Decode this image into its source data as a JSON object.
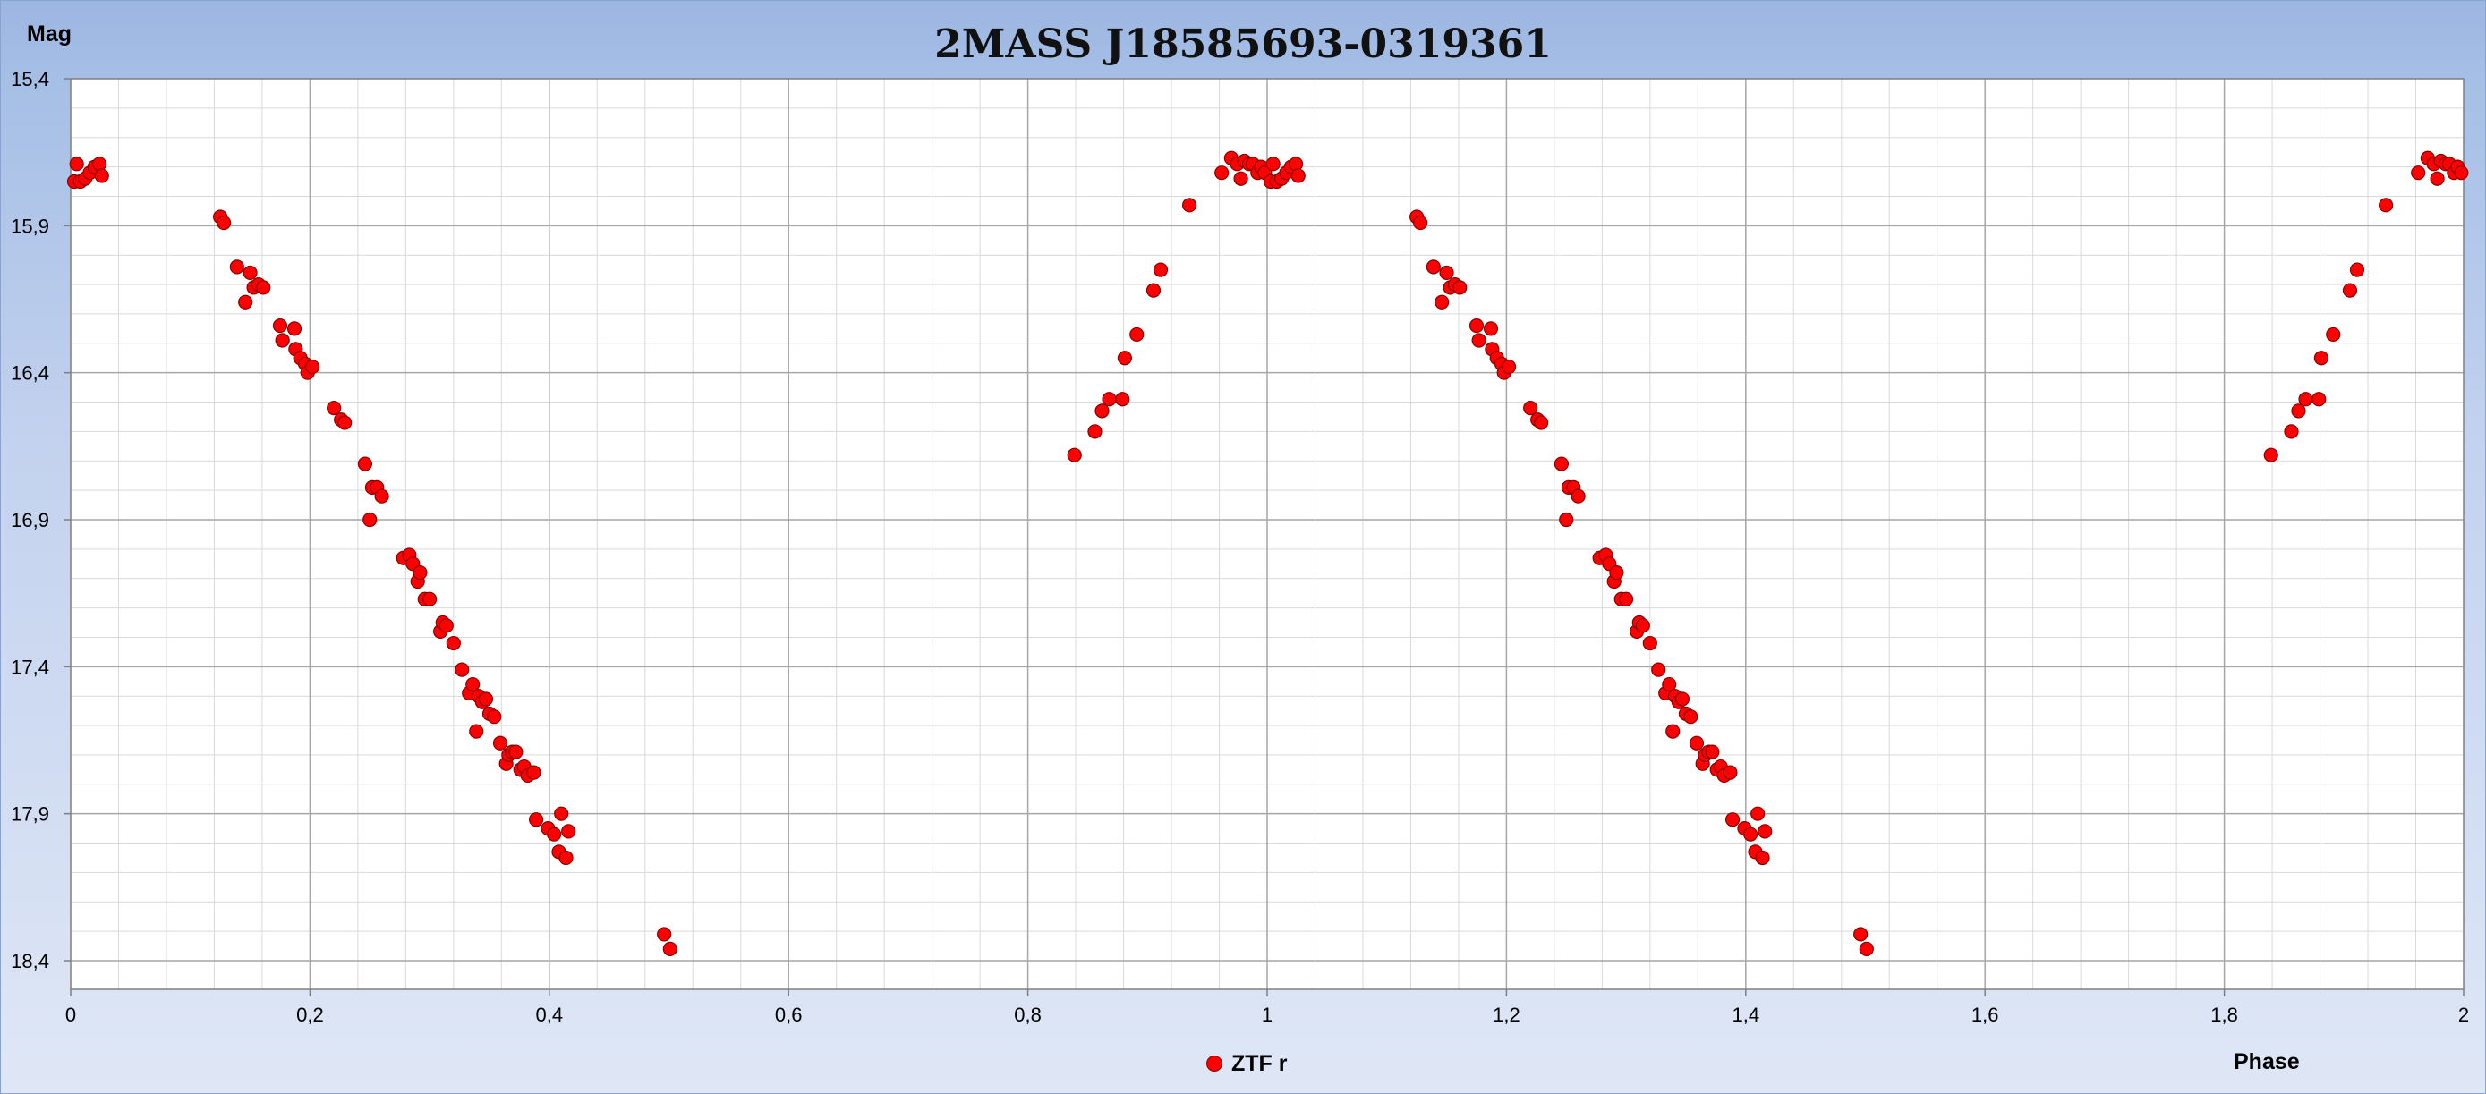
{
  "chart_data": {
    "type": "scatter",
    "title": "2MASS J18585693-0319361",
    "xlabel": "Phase",
    "ylabel": "Mag",
    "xlim": [
      0,
      2
    ],
    "ylim": [
      15.4,
      18.5
    ],
    "y_inverted": true,
    "x_ticks": [
      "0",
      "0,2",
      "0,4",
      "0,6",
      "0,8",
      "1",
      "1,2",
      "1,4",
      "1,6",
      "1,8",
      "2"
    ],
    "y_ticks": [
      "15,4",
      "15,9",
      "16,4",
      "16,9",
      "17,4",
      "17,9",
      "18,4"
    ],
    "grid": true,
    "legend_position": "bottom-center",
    "series": [
      {
        "name": "ZTF r",
        "color": "#ff0000",
        "edge_color": "#8b0000",
        "points": [
          [
            0.003,
            15.75
          ],
          [
            0.005,
            15.69
          ],
          [
            0.008,
            15.75
          ],
          [
            0.012,
            15.74
          ],
          [
            0.016,
            15.72
          ],
          [
            0.02,
            15.7
          ],
          [
            0.024,
            15.69
          ],
          [
            0.026,
            15.73
          ],
          [
            0.125,
            15.87
          ],
          [
            0.128,
            15.89
          ],
          [
            0.139,
            16.04
          ],
          [
            0.146,
            16.16
          ],
          [
            0.15,
            16.06
          ],
          [
            0.153,
            16.11
          ],
          [
            0.157,
            16.1
          ],
          [
            0.161,
            16.11
          ],
          [
            0.175,
            16.24
          ],
          [
            0.177,
            16.29
          ],
          [
            0.187,
            16.25
          ],
          [
            0.188,
            16.32
          ],
          [
            0.192,
            16.35
          ],
          [
            0.196,
            16.37
          ],
          [
            0.198,
            16.4
          ],
          [
            0.202,
            16.38
          ],
          [
            0.22,
            16.52
          ],
          [
            0.226,
            16.56
          ],
          [
            0.229,
            16.57
          ],
          [
            0.246,
            16.71
          ],
          [
            0.25,
            16.9
          ],
          [
            0.252,
            16.79
          ],
          [
            0.256,
            16.79
          ],
          [
            0.26,
            16.82
          ],
          [
            0.278,
            17.03
          ],
          [
            0.283,
            17.02
          ],
          [
            0.286,
            17.05
          ],
          [
            0.29,
            17.11
          ],
          [
            0.292,
            17.08
          ],
          [
            0.296,
            17.17
          ],
          [
            0.3,
            17.17
          ],
          [
            0.309,
            17.28
          ],
          [
            0.311,
            17.25
          ],
          [
            0.314,
            17.26
          ],
          [
            0.32,
            17.32
          ],
          [
            0.327,
            17.41
          ],
          [
            0.333,
            17.49
          ],
          [
            0.336,
            17.46
          ],
          [
            0.339,
            17.62
          ],
          [
            0.341,
            17.5
          ],
          [
            0.344,
            17.52
          ],
          [
            0.347,
            17.51
          ],
          [
            0.35,
            17.56
          ],
          [
            0.354,
            17.57
          ],
          [
            0.359,
            17.66
          ],
          [
            0.364,
            17.73
          ],
          [
            0.366,
            17.7
          ],
          [
            0.369,
            17.69
          ],
          [
            0.372,
            17.69
          ],
          [
            0.376,
            17.75
          ],
          [
            0.379,
            17.74
          ],
          [
            0.382,
            17.77
          ],
          [
            0.387,
            17.76
          ],
          [
            0.389,
            17.92
          ],
          [
            0.399,
            17.95
          ],
          [
            0.404,
            17.97
          ],
          [
            0.408,
            18.03
          ],
          [
            0.41,
            17.9
          ],
          [
            0.414,
            18.05
          ],
          [
            0.416,
            17.96
          ],
          [
            0.496,
            18.31
          ],
          [
            0.501,
            18.36
          ],
          [
            0.839,
            16.68
          ],
          [
            0.856,
            16.6
          ],
          [
            0.862,
            16.53
          ],
          [
            0.868,
            16.49
          ],
          [
            0.879,
            16.49
          ],
          [
            0.881,
            16.35
          ],
          [
            0.891,
            16.27
          ],
          [
            0.905,
            16.12
          ],
          [
            0.911,
            16.05
          ],
          [
            0.935,
            15.83
          ],
          [
            0.962,
            15.72
          ],
          [
            0.97,
            15.67
          ],
          [
            0.975,
            15.69
          ],
          [
            0.978,
            15.74
          ],
          [
            0.981,
            15.68
          ],
          [
            0.985,
            15.69
          ],
          [
            0.988,
            15.69
          ],
          [
            0.992,
            15.72
          ],
          [
            0.995,
            15.7
          ],
          [
            0.998,
            15.72
          ],
          [
            1.003,
            15.75
          ],
          [
            1.005,
            15.69
          ],
          [
            1.008,
            15.75
          ],
          [
            1.012,
            15.74
          ],
          [
            1.016,
            15.72
          ],
          [
            1.02,
            15.7
          ],
          [
            1.024,
            15.69
          ],
          [
            1.026,
            15.73
          ],
          [
            1.125,
            15.87
          ],
          [
            1.128,
            15.89
          ],
          [
            1.139,
            16.04
          ],
          [
            1.146,
            16.16
          ],
          [
            1.15,
            16.06
          ],
          [
            1.153,
            16.11
          ],
          [
            1.157,
            16.1
          ],
          [
            1.161,
            16.11
          ],
          [
            1.175,
            16.24
          ],
          [
            1.177,
            16.29
          ],
          [
            1.187,
            16.25
          ],
          [
            1.188,
            16.32
          ],
          [
            1.192,
            16.35
          ],
          [
            1.196,
            16.37
          ],
          [
            1.198,
            16.4
          ],
          [
            1.202,
            16.38
          ],
          [
            1.22,
            16.52
          ],
          [
            1.226,
            16.56
          ],
          [
            1.229,
            16.57
          ],
          [
            1.246,
            16.71
          ],
          [
            1.25,
            16.9
          ],
          [
            1.252,
            16.79
          ],
          [
            1.256,
            16.79
          ],
          [
            1.26,
            16.82
          ],
          [
            1.278,
            17.03
          ],
          [
            1.283,
            17.02
          ],
          [
            1.286,
            17.05
          ],
          [
            1.29,
            17.11
          ],
          [
            1.292,
            17.08
          ],
          [
            1.296,
            17.17
          ],
          [
            1.3,
            17.17
          ],
          [
            1.309,
            17.28
          ],
          [
            1.311,
            17.25
          ],
          [
            1.314,
            17.26
          ],
          [
            1.32,
            17.32
          ],
          [
            1.327,
            17.41
          ],
          [
            1.333,
            17.49
          ],
          [
            1.336,
            17.46
          ],
          [
            1.339,
            17.62
          ],
          [
            1.341,
            17.5
          ],
          [
            1.344,
            17.52
          ],
          [
            1.347,
            17.51
          ],
          [
            1.35,
            17.56
          ],
          [
            1.354,
            17.57
          ],
          [
            1.359,
            17.66
          ],
          [
            1.364,
            17.73
          ],
          [
            1.366,
            17.7
          ],
          [
            1.369,
            17.69
          ],
          [
            1.372,
            17.69
          ],
          [
            1.376,
            17.75
          ],
          [
            1.379,
            17.74
          ],
          [
            1.382,
            17.77
          ],
          [
            1.387,
            17.76
          ],
          [
            1.389,
            17.92
          ],
          [
            1.399,
            17.95
          ],
          [
            1.404,
            17.97
          ],
          [
            1.408,
            18.03
          ],
          [
            1.41,
            17.9
          ],
          [
            1.414,
            18.05
          ],
          [
            1.416,
            17.96
          ],
          [
            1.496,
            18.31
          ],
          [
            1.501,
            18.36
          ],
          [
            1.839,
            16.68
          ],
          [
            1.856,
            16.6
          ],
          [
            1.862,
            16.53
          ],
          [
            1.868,
            16.49
          ],
          [
            1.879,
            16.49
          ],
          [
            1.881,
            16.35
          ],
          [
            1.891,
            16.27
          ],
          [
            1.905,
            16.12
          ],
          [
            1.911,
            16.05
          ],
          [
            1.935,
            15.83
          ],
          [
            1.962,
            15.72
          ],
          [
            1.97,
            15.67
          ],
          [
            1.975,
            15.69
          ],
          [
            1.978,
            15.74
          ],
          [
            1.981,
            15.68
          ],
          [
            1.985,
            15.69
          ],
          [
            1.988,
            15.69
          ],
          [
            1.992,
            15.72
          ],
          [
            1.995,
            15.7
          ],
          [
            1.998,
            15.72
          ]
        ]
      }
    ]
  }
}
